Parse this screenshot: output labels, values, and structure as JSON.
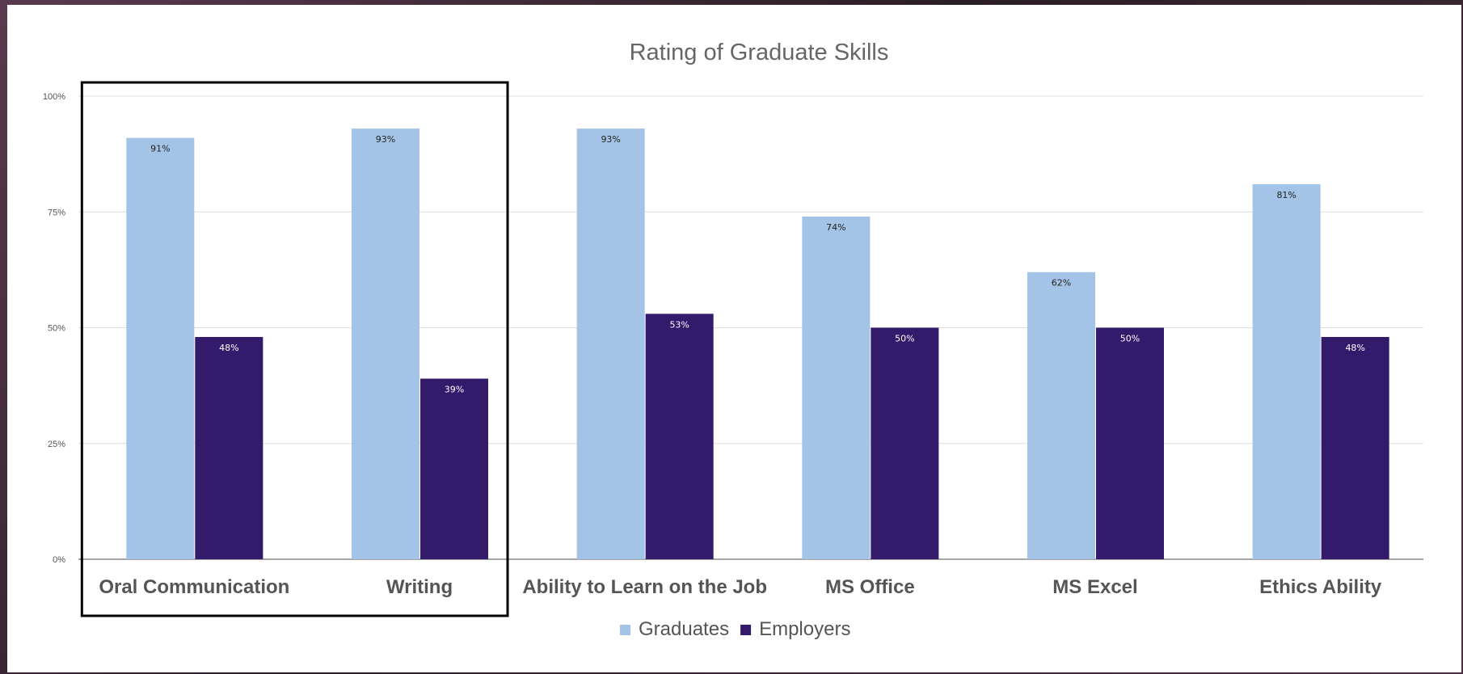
{
  "chart_data": {
    "type": "bar",
    "title": "Rating of Graduate Skills",
    "xlabel": "",
    "ylabel": "",
    "ylim": [
      0,
      100
    ],
    "y_ticks": [
      "0%",
      "25%",
      "50%",
      "75%",
      "100%"
    ],
    "grid": true,
    "legend_position": "bottom",
    "categories": [
      "Oral Communication",
      "Writing",
      "Ability to Learn on the Job",
      "MS Office",
      "MS Excel",
      "Ethics Ability"
    ],
    "series": [
      {
        "name": "Graduates",
        "color": "#a3c4e6",
        "label_color": "#222222",
        "values": [
          91,
          93,
          93,
          74,
          62,
          81
        ]
      },
      {
        "name": "Employers",
        "color": "#331a6b",
        "label_color": "#ffffff",
        "values": [
          48,
          39,
          53,
          50,
          50,
          48
        ]
      }
    ],
    "annotation": {
      "type": "highlight-box",
      "covers_categories": [
        "Oral Communication",
        "Writing"
      ]
    }
  }
}
